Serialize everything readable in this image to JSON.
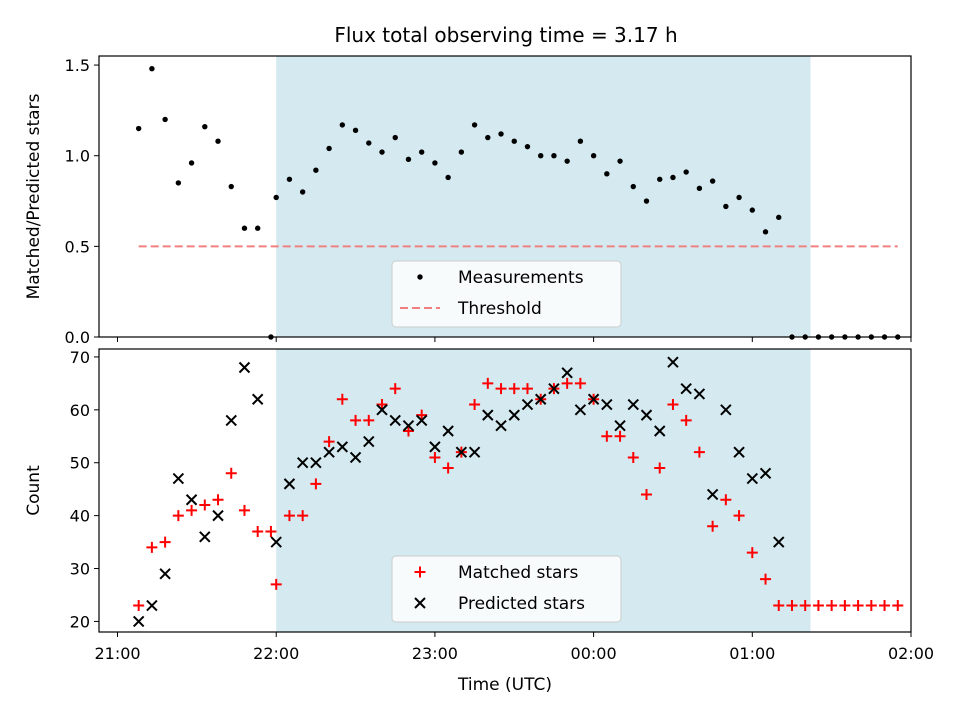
{
  "title": "Flux total observing time = 3.17 h",
  "chart_data": [
    {
      "type": "scatter",
      "ylabel": "Matched/Predicted stars",
      "xlabel": "",
      "ylim": [
        0,
        1.55
      ],
      "yticks": [
        "0.0",
        "0.5",
        "1.0",
        "1.5"
      ],
      "xlim": [
        "20:53",
        "02:00"
      ],
      "xticks": [
        "21:00",
        "22:00",
        "23:00",
        "00:00",
        "01:00",
        "02:00"
      ],
      "observing_window": [
        "22:00",
        "01:22"
      ],
      "observing_window_color": "#d4eaf0",
      "legend": {
        "placement": "lower-center",
        "entries": [
          "Measurements",
          "Threshold"
        ]
      },
      "series": [
        {
          "name": "Measurements",
          "marker": "dot",
          "color": "#000000",
          "x": [
            "21:08",
            "21:13",
            "21:18",
            "21:23",
            "21:28",
            "21:33",
            "21:38",
            "21:43",
            "21:48",
            "21:53",
            "21:58",
            "22:00",
            "22:05",
            "22:10",
            "22:15",
            "22:20",
            "22:25",
            "22:30",
            "22:35",
            "22:40",
            "22:45",
            "22:50",
            "22:55",
            "23:00",
            "23:05",
            "23:10",
            "23:15",
            "23:20",
            "23:25",
            "23:30",
            "23:35",
            "23:40",
            "23:45",
            "23:50",
            "23:55",
            "00:00",
            "00:05",
            "00:10",
            "00:15",
            "00:20",
            "00:25",
            "00:30",
            "00:35",
            "00:40",
            "00:45",
            "00:50",
            "00:55",
            "01:00",
            "01:05",
            "01:10",
            "01:15",
            "01:20",
            "01:25",
            "01:30",
            "01:35",
            "01:40",
            "01:45",
            "01:50",
            "01:55"
          ],
          "y": [
            1.15,
            1.48,
            1.2,
            0.85,
            0.96,
            1.16,
            1.08,
            0.83,
            0.6,
            0.6,
            0,
            0.77,
            0.87,
            0.8,
            0.92,
            1.04,
            1.17,
            1.14,
            1.07,
            1.02,
            1.1,
            0.98,
            1.02,
            0.96,
            0.88,
            1.02,
            1.17,
            1.1,
            1.12,
            1.08,
            1.05,
            1.0,
            1.0,
            0.97,
            1.08,
            1.0,
            0.9,
            0.97,
            0.83,
            0.75,
            0.87,
            0.88,
            0.91,
            0.82,
            0.86,
            0.72,
            0.77,
            0.7,
            0.58,
            0.66,
            0,
            0,
            0,
            0,
            0,
            0,
            0,
            0,
            0
          ]
        },
        {
          "name": "Threshold",
          "style": "dashed",
          "color": "#f08080",
          "x": [
            "21:08",
            "01:55"
          ],
          "y": [
            0.5,
            0.5
          ]
        }
      ]
    },
    {
      "type": "scatter",
      "ylabel": "Count",
      "xlabel": "Time (UTC)",
      "ylim": [
        18,
        71.5
      ],
      "yticks": [
        "20",
        "30",
        "40",
        "50",
        "60",
        "70"
      ],
      "xlim": [
        "20:53",
        "02:00"
      ],
      "xticks": [
        "21:00",
        "22:00",
        "23:00",
        "00:00",
        "01:00",
        "02:00"
      ],
      "observing_window": [
        "22:00",
        "01:22"
      ],
      "observing_window_color": "#d4eaf0",
      "legend": {
        "placement": "lower-center",
        "entries": [
          "Matched stars",
          "Predicted stars"
        ]
      },
      "series": [
        {
          "name": "Matched stars",
          "marker": "plus",
          "color": "#ff0000",
          "x": [
            "21:08",
            "21:13",
            "21:18",
            "21:23",
            "21:28",
            "21:33",
            "21:38",
            "21:43",
            "21:48",
            "21:53",
            "21:58",
            "22:00",
            "22:05",
            "22:10",
            "22:15",
            "22:20",
            "22:25",
            "22:30",
            "22:35",
            "22:40",
            "22:45",
            "22:50",
            "22:55",
            "23:00",
            "23:05",
            "23:10",
            "23:15",
            "23:20",
            "23:25",
            "23:30",
            "23:35",
            "23:40",
            "23:45",
            "23:50",
            "23:55",
            "00:00",
            "00:05",
            "00:10",
            "00:15",
            "00:20",
            "00:25",
            "00:30",
            "00:35",
            "00:40",
            "00:45",
            "00:50",
            "00:55",
            "01:00",
            "01:05",
            "01:10",
            "01:15",
            "01:20",
            "01:25",
            "01:30",
            "01:35",
            "01:40",
            "01:45",
            "01:50",
            "01:55"
          ],
          "y": [
            23,
            34,
            35,
            40,
            41,
            42,
            43,
            48,
            41,
            37,
            37,
            27,
            40,
            40,
            46,
            54,
            62,
            58,
            58,
            61,
            64,
            56,
            59,
            51,
            49,
            52,
            61,
            65,
            64,
            64,
            64,
            62,
            64,
            65,
            65,
            62,
            55,
            55,
            51,
            44,
            49,
            61,
            58,
            52,
            38,
            43,
            40,
            33,
            28,
            23,
            23,
            23,
            23,
            23,
            23,
            23,
            23,
            23,
            23
          ]
        },
        {
          "name": "Predicted stars",
          "marker": "x",
          "color": "#000000",
          "x": [
            "21:08",
            "21:13",
            "21:18",
            "21:23",
            "21:28",
            "21:33",
            "21:38",
            "21:43",
            "21:48",
            "21:53",
            "22:00",
            "22:05",
            "22:10",
            "22:15",
            "22:20",
            "22:25",
            "22:30",
            "22:35",
            "22:40",
            "22:45",
            "22:50",
            "22:55",
            "23:00",
            "23:05",
            "23:10",
            "23:15",
            "23:20",
            "23:25",
            "23:30",
            "23:35",
            "23:40",
            "23:45",
            "23:50",
            "23:55",
            "00:00",
            "00:05",
            "00:10",
            "00:15",
            "00:20",
            "00:25",
            "00:30",
            "00:35",
            "00:40",
            "00:45",
            "00:50",
            "00:55",
            "01:00",
            "01:05",
            "01:10"
          ],
          "y": [
            20,
            23,
            29,
            47,
            43,
            36,
            40,
            58,
            68,
            62,
            35,
            46,
            50,
            50,
            52,
            53,
            51,
            54,
            60,
            58,
            57,
            58,
            53,
            56,
            52,
            52,
            59,
            57,
            59,
            61,
            62,
            64,
            67,
            60,
            62,
            61,
            57,
            61,
            59,
            56,
            69,
            64,
            63,
            44,
            60,
            52,
            47,
            48,
            35
          ]
        }
      ]
    }
  ]
}
